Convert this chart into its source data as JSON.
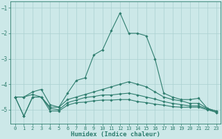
{
  "title": "",
  "xlabel": "Humidex (Indice chaleur)",
  "background_color": "#cce8e8",
  "line_color": "#2e7d6e",
  "grid_color": "#aad0d0",
  "xlim": [
    -0.5,
    23.5
  ],
  "ylim": [
    -5.55,
    -0.75
  ],
  "yticks": [
    -5,
    -4,
    -3,
    -2,
    -1
  ],
  "xticks": [
    0,
    1,
    2,
    3,
    4,
    5,
    6,
    7,
    8,
    9,
    10,
    11,
    12,
    13,
    14,
    15,
    16,
    17,
    18,
    19,
    20,
    21,
    22,
    23
  ],
  "x": [
    0,
    1,
    2,
    3,
    4,
    5,
    6,
    7,
    8,
    9,
    10,
    11,
    12,
    13,
    14,
    15,
    16,
    17,
    18,
    19,
    20,
    21,
    22,
    23
  ],
  "series": [
    [
      -4.5,
      -4.5,
      -4.3,
      -4.2,
      -4.8,
      -4.9,
      -4.35,
      -3.85,
      -3.75,
      -2.85,
      -2.65,
      -1.9,
      -1.2,
      -2.0,
      -2.0,
      -2.1,
      -3.0,
      -4.35,
      -4.5,
      -4.6,
      -4.6,
      -4.55,
      -4.95,
      -5.05
    ],
    [
      -4.5,
      -4.5,
      -4.4,
      -4.5,
      -4.9,
      -4.9,
      -4.6,
      -4.5,
      -4.4,
      -4.3,
      -4.2,
      -4.1,
      -4.0,
      -3.9,
      -4.0,
      -4.1,
      -4.3,
      -4.5,
      -4.6,
      -4.65,
      -4.75,
      -4.75,
      -4.95,
      -5.05
    ],
    [
      -4.5,
      -5.25,
      -4.5,
      -4.5,
      -4.95,
      -5.0,
      -4.72,
      -4.62,
      -4.52,
      -4.48,
      -4.42,
      -4.42,
      -4.38,
      -4.35,
      -4.42,
      -4.5,
      -4.58,
      -4.68,
      -4.75,
      -4.8,
      -4.85,
      -4.85,
      -4.97,
      -5.1
    ],
    [
      -4.5,
      -5.25,
      -4.5,
      -4.5,
      -5.05,
      -5.05,
      -4.82,
      -4.72,
      -4.7,
      -4.65,
      -4.62,
      -4.62,
      -4.6,
      -4.6,
      -4.68,
      -4.72,
      -4.78,
      -4.82,
      -4.88,
      -4.9,
      -4.9,
      -4.9,
      -5.0,
      -5.1
    ]
  ]
}
